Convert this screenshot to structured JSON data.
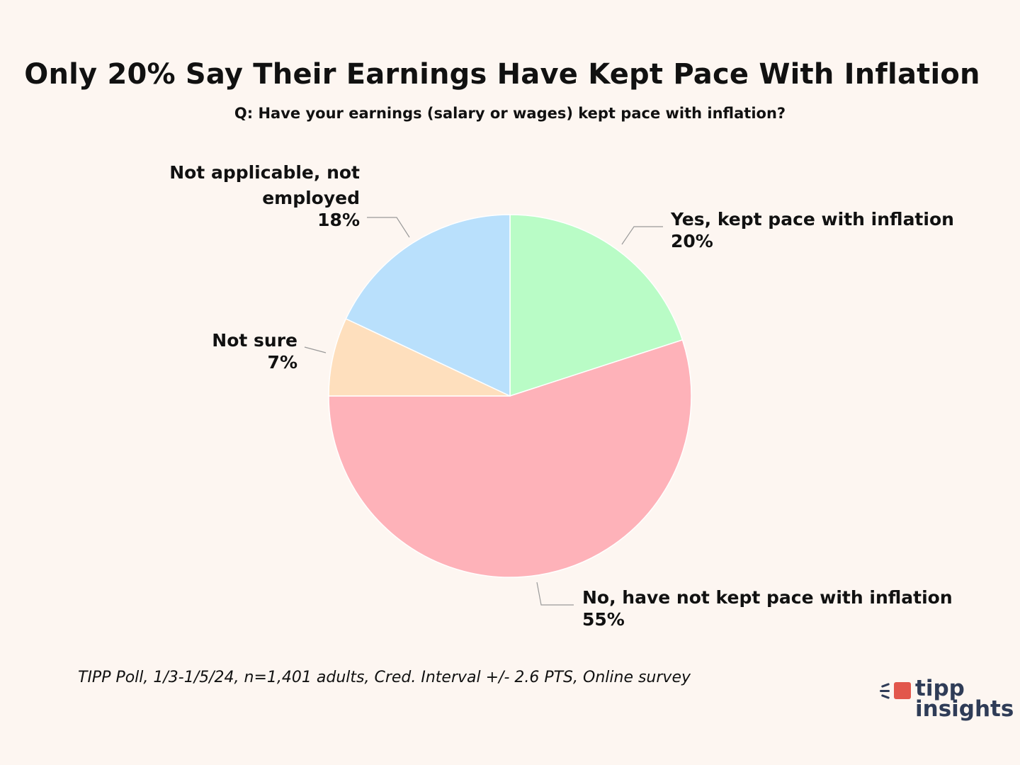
{
  "chart_data": {
    "type": "pie",
    "title": "Only 20% Say Their Earnings Have Kept Pace With Inflation",
    "subtitle": "Q: Have your earnings (salary or wages) kept pace with inflation?",
    "slices": [
      {
        "label_lines": [
          "Yes, kept pace with inflation"
        ],
        "value": 20,
        "value_label": "20%",
        "color": "#b9fcc6"
      },
      {
        "label_lines": [
          "No, have not kept pace with inflation"
        ],
        "value": 55,
        "value_label": "55%",
        "color": "#feb2b9"
      },
      {
        "label_lines": [
          "Not sure"
        ],
        "value": 7,
        "value_label": "7%",
        "color": "#fedfbd"
      },
      {
        "label_lines": [
          "Not applicable, not",
          "employed"
        ],
        "value": 18,
        "value_label": "18%",
        "color": "#b9e0fc"
      }
    ],
    "start": "12 o'clock",
    "direction": "clockwise",
    "legend": "none"
  },
  "footer": {
    "source": "TIPP Poll, 1/3-1/5/24, n=1,401 adults, Cred. Interval +/- 2.6 PTS, Online survey"
  },
  "logo": {
    "line1": "tipp",
    "line2": "insights",
    "accent_color": "#e2574c",
    "text_color": "#2f3c57"
  }
}
